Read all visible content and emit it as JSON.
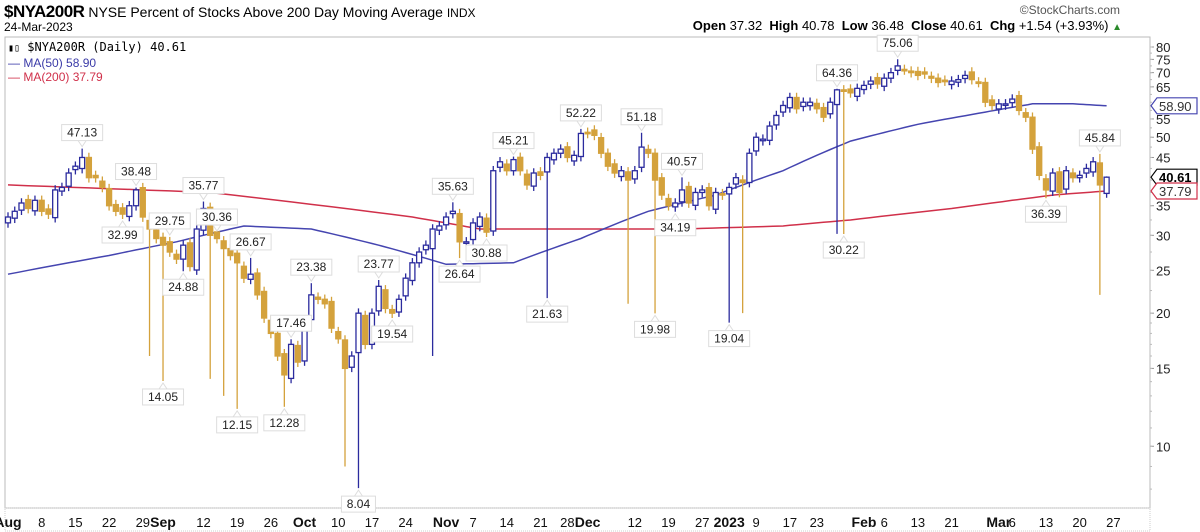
{
  "header": {
    "symbol": "$NYA200R",
    "description": "NYSE Percent of Stocks Above 200 Day Moving Average",
    "exchange": "INDX",
    "date": "24-Mar-2023",
    "brand": "©StockCharts.com",
    "open_label": "Open",
    "open": "37.32",
    "high_label": "High",
    "high": "40.78",
    "low_label": "Low",
    "low": "36.48",
    "close_label": "Close",
    "close": "40.61",
    "chg_label": "Chg",
    "chg": "+1.54 (+3.93%)",
    "chg_icon": "triangle-up"
  },
  "legend": {
    "main": "$NYA200R (Daily) 40.61",
    "ma50": "MA(50) 58.90",
    "ma200": "MA(200) 37.79"
  },
  "colors": {
    "up": "#2b2b9e",
    "down": "#d4a23c",
    "ma50": "#4545b0",
    "ma200": "#d0304a",
    "grid": "#cccccc"
  },
  "chart_data": {
    "type": "candlestick",
    "title": "$NYA200R NYSE Percent of Stocks Above 200 Day Moving Average",
    "yscale": "log",
    "ylim": [
      6.5,
      82
    ],
    "yticks": [
      80,
      75,
      70,
      65,
      55,
      50,
      45,
      35,
      30,
      25,
      20,
      15,
      10
    ],
    "closes": [
      33,
      34,
      35.5,
      34.5,
      36,
      34,
      33.5,
      38,
      38.5,
      41.5,
      43,
      45,
      40.5,
      40.5,
      38.5,
      35,
      34,
      33.5,
      35,
      38,
      33,
      31,
      29.5,
      28.5,
      27.5,
      26.5,
      28.5,
      25.5,
      31,
      34.5,
      30,
      29.5,
      28,
      27,
      26,
      24,
      24.5,
      22,
      19.5,
      18,
      16,
      14.5,
      17,
      15.5,
      19,
      22,
      21.5,
      21,
      18.5,
      17.5,
      15,
      16,
      20,
      17,
      20,
      23,
      20.5,
      20,
      21.5,
      24,
      26,
      27.5,
      28.5,
      31,
      31.5,
      33,
      34,
      29,
      29,
      32,
      33,
      30.5,
      42,
      44,
      42,
      44.5,
      42,
      39,
      41.5,
      41,
      45,
      46,
      47,
      45,
      45.5,
      51,
      51,
      50.5,
      46,
      43,
      41.5,
      42,
      40,
      42,
      47.5,
      46,
      40,
      37,
      35,
      35.5,
      38,
      35.5,
      37.5,
      38,
      35,
      37.5,
      37,
      38.5,
      40.5,
      39.5,
      46,
      50,
      49.5,
      53,
      56,
      59,
      61.5,
      58,
      60,
      60,
      58,
      55.5,
      60,
      64,
      63.5,
      63,
      64.5,
      65.5,
      67,
      66,
      68,
      70,
      72.5,
      71,
      70,
      69,
      69.5,
      68,
      66.5,
      67,
      67,
      67.5,
      69,
      67.5,
      66.5,
      60,
      59,
      59.5,
      59.5,
      61,
      57.5,
      55.5,
      47,
      41,
      38,
      41.5,
      37.5,
      42,
      40.5,
      41,
      42.5,
      44,
      39,
      40.61
    ],
    "last_candle": {
      "open": 37.32,
      "high": 40.78,
      "low": 36.48,
      "close": 40.61
    },
    "spike_lows": [
      {
        "i": 21,
        "low": 16
      },
      {
        "i": 23,
        "low": 14.05
      },
      {
        "i": 30,
        "low": 14.2
      },
      {
        "i": 32,
        "low": 13
      },
      {
        "i": 34,
        "low": 12.15
      },
      {
        "i": 41,
        "low": 12.28
      },
      {
        "i": 50,
        "low": 9
      },
      {
        "i": 52,
        "low": 8.04
      },
      {
        "i": 63,
        "low": 16
      },
      {
        "i": 80,
        "low": 21.63
      },
      {
        "i": 92,
        "low": 21
      },
      {
        "i": 96,
        "low": 19.98
      },
      {
        "i": 107,
        "low": 19.04
      },
      {
        "i": 109,
        "low": 20
      },
      {
        "i": 123,
        "low": 30.22
      },
      {
        "i": 124,
        "low": 30.2
      },
      {
        "i": 162,
        "low": 22
      }
    ],
    "annotations": [
      {
        "i": 11,
        "v": "47.13",
        "pos": "above"
      },
      {
        "i": 19,
        "v": "38.48",
        "pos": "above"
      },
      {
        "i": 17,
        "v": "32.99",
        "pos": "below"
      },
      {
        "i": 24,
        "v": "29.75",
        "pos": "above"
      },
      {
        "i": 26,
        "v": "24.88",
        "pos": "below"
      },
      {
        "i": 29,
        "v": "35.77",
        "pos": "above"
      },
      {
        "i": 31,
        "v": "30.36",
        "pos": "above"
      },
      {
        "i": 23,
        "v": "14.05",
        "pos": "below"
      },
      {
        "i": 34,
        "v": "12.15",
        "pos": "below"
      },
      {
        "i": 36,
        "v": "26.67",
        "pos": "above"
      },
      {
        "i": 42,
        "v": "17.46",
        "pos": "above"
      },
      {
        "i": 41,
        "v": "12.28",
        "pos": "below"
      },
      {
        "i": 45,
        "v": "23.38",
        "pos": "above"
      },
      {
        "i": 52,
        "v": "8.04",
        "pos": "below"
      },
      {
        "i": 55,
        "v": "23.77",
        "pos": "above"
      },
      {
        "i": 57,
        "v": "19.54",
        "pos": "below"
      },
      {
        "i": 66,
        "v": "35.63",
        "pos": "above"
      },
      {
        "i": 67,
        "v": "26.64",
        "pos": "below"
      },
      {
        "i": 71,
        "v": "30.88",
        "pos": "below"
      },
      {
        "i": 75,
        "v": "45.21",
        "pos": "above"
      },
      {
        "i": 80,
        "v": "21.63",
        "pos": "below"
      },
      {
        "i": 85,
        "v": "52.22",
        "pos": "above"
      },
      {
        "i": 94,
        "v": "51.18",
        "pos": "above"
      },
      {
        "i": 96,
        "v": "19.98",
        "pos": "below"
      },
      {
        "i": 100,
        "v": "40.57",
        "pos": "above"
      },
      {
        "i": 99,
        "v": "34.19",
        "pos": "below"
      },
      {
        "i": 107,
        "v": "19.04",
        "pos": "below"
      },
      {
        "i": 123,
        "v": "64.36",
        "pos": "above"
      },
      {
        "i": 124,
        "v": "30.22",
        "pos": "below"
      },
      {
        "i": 132,
        "v": "75.06",
        "pos": "above"
      },
      {
        "i": 154,
        "v": "36.39",
        "pos": "below"
      },
      {
        "i": 162,
        "v": "45.84",
        "pos": "above"
      }
    ],
    "ma50": [
      [
        0,
        24.5
      ],
      [
        15,
        27
      ],
      [
        25,
        29
      ],
      [
        35,
        31.5
      ],
      [
        45,
        31
      ],
      [
        55,
        28.5
      ],
      [
        65,
        25.8
      ],
      [
        75,
        26
      ],
      [
        85,
        29.5
      ],
      [
        95,
        34
      ],
      [
        105,
        37
      ],
      [
        115,
        42
      ],
      [
        125,
        49
      ],
      [
        135,
        53.5
      ],
      [
        145,
        57
      ],
      [
        152,
        59.5
      ],
      [
        158,
        59.5
      ],
      [
        163,
        58.9
      ]
    ],
    "ma200": [
      [
        0,
        39
      ],
      [
        30,
        37.5
      ],
      [
        60,
        33
      ],
      [
        70,
        31
      ],
      [
        85,
        31
      ],
      [
        100,
        31
      ],
      [
        115,
        31.5
      ],
      [
        125,
        32.5
      ],
      [
        140,
        34.5
      ],
      [
        155,
        37
      ],
      [
        163,
        37.79
      ]
    ],
    "badges": [
      {
        "v": "58.90",
        "series": "ma50"
      },
      {
        "v": "40.61",
        "series": "price"
      },
      {
        "v": "37.79",
        "series": "ma200"
      }
    ],
    "xticks": [
      {
        "i": 0,
        "t": "Aug",
        "b": true
      },
      {
        "i": 5,
        "t": "8"
      },
      {
        "i": 10,
        "t": "15"
      },
      {
        "i": 15,
        "t": "22"
      },
      {
        "i": 20,
        "t": "29"
      },
      {
        "i": 23,
        "t": "Sep",
        "b": true
      },
      {
        "i": 29,
        "t": "12"
      },
      {
        "i": 34,
        "t": "19"
      },
      {
        "i": 39,
        "t": "26"
      },
      {
        "i": 44,
        "t": "Oct",
        "b": true
      },
      {
        "i": 49,
        "t": "10"
      },
      {
        "i": 54,
        "t": "17"
      },
      {
        "i": 59,
        "t": "24"
      },
      {
        "i": 65,
        "t": "Nov",
        "b": true
      },
      {
        "i": 69,
        "t": "7"
      },
      {
        "i": 74,
        "t": "14"
      },
      {
        "i": 79,
        "t": "21"
      },
      {
        "i": 83,
        "t": "28"
      },
      {
        "i": 86,
        "t": "Dec",
        "b": true
      },
      {
        "i": 93,
        "t": "12"
      },
      {
        "i": 98,
        "t": "19"
      },
      {
        "i": 103,
        "t": "27"
      },
      {
        "i": 107,
        "t": "2023",
        "b": true
      },
      {
        "i": 111,
        "t": "9"
      },
      {
        "i": 116,
        "t": "17"
      },
      {
        "i": 120,
        "t": "23"
      },
      {
        "i": 127,
        "t": "Feb",
        "b": true
      },
      {
        "i": 130,
        "t": "6"
      },
      {
        "i": 135,
        "t": "13"
      },
      {
        "i": 140,
        "t": "21"
      },
      {
        "i": 147,
        "t": "Mar",
        "b": true
      },
      {
        "i": 149,
        "t": "6"
      },
      {
        "i": 154,
        "t": "13"
      },
      {
        "i": 159,
        "t": "20"
      },
      {
        "i": 164,
        "t": "27"
      }
    ]
  }
}
